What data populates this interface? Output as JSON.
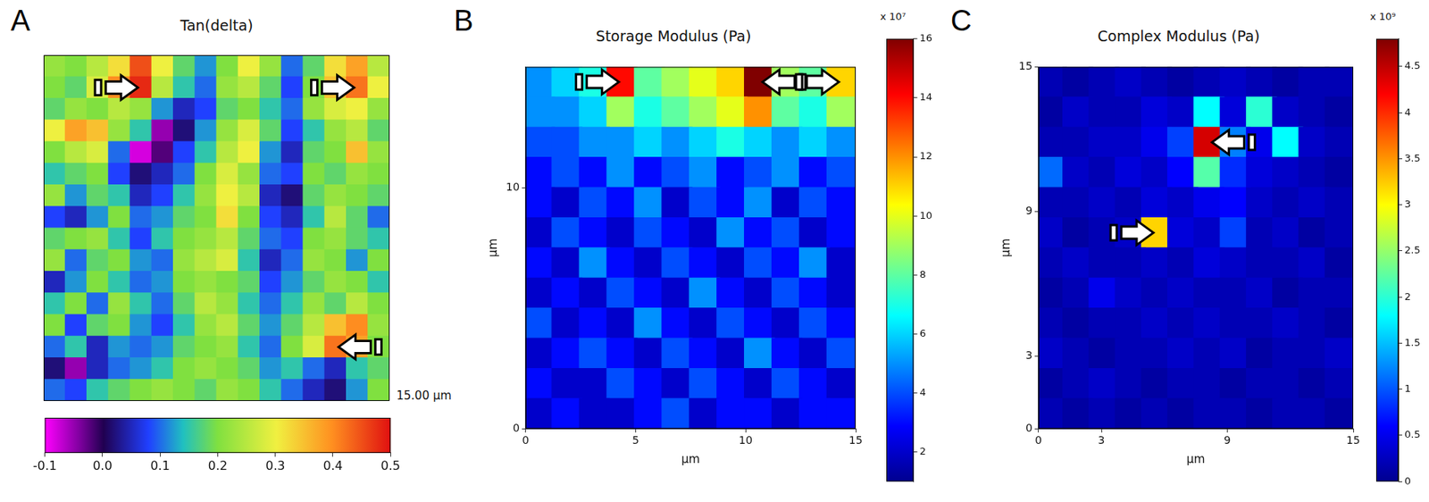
{
  "chart_data": [
    {
      "type": "heatmap",
      "panel_label": "A",
      "title": "Tan(delta)",
      "annotation": "15.00 µm",
      "xlim": [
        0,
        15
      ],
      "ylim": [
        0,
        15
      ],
      "tick_labels": false,
      "cells": [
        [
          0.22,
          0.2,
          0.25,
          0.32,
          0.45,
          0.3,
          0.18,
          0.12,
          0.2,
          0.3,
          0.22,
          0.1,
          0.18,
          0.32,
          0.38,
          0.25
        ],
        [
          0.2,
          0.18,
          0.28,
          0.4,
          0.48,
          0.25,
          0.15,
          0.1,
          0.22,
          0.25,
          0.18,
          0.08,
          0.2,
          0.35,
          0.42,
          0.3
        ],
        [
          0.18,
          0.22,
          0.2,
          0.25,
          0.22,
          0.12,
          0.05,
          0.08,
          0.18,
          0.2,
          0.15,
          0.1,
          0.22,
          0.28,
          0.3,
          0.22
        ],
        [
          0.3,
          0.38,
          0.35,
          0.22,
          0.15,
          -0.05,
          0.02,
          0.12,
          0.22,
          0.28,
          0.18,
          0.08,
          0.15,
          0.22,
          0.25,
          0.18
        ],
        [
          0.2,
          0.25,
          0.28,
          0.1,
          -0.08,
          -0.02,
          0.08,
          0.15,
          0.25,
          0.3,
          0.12,
          0.05,
          0.18,
          0.2,
          0.35,
          0.22
        ],
        [
          0.15,
          0.18,
          0.2,
          0.08,
          0.02,
          0.05,
          0.1,
          0.2,
          0.28,
          0.22,
          0.1,
          0.08,
          0.2,
          0.18,
          0.22,
          0.2
        ],
        [
          0.22,
          0.12,
          0.18,
          0.15,
          0.05,
          0.08,
          0.15,
          0.22,
          0.3,
          0.25,
          0.05,
          0.02,
          0.18,
          0.22,
          0.2,
          0.18
        ],
        [
          0.08,
          0.05,
          0.12,
          0.2,
          0.1,
          0.12,
          0.18,
          0.2,
          0.32,
          0.2,
          0.08,
          0.05,
          0.15,
          0.25,
          0.18,
          0.1
        ],
        [
          0.18,
          0.2,
          0.22,
          0.15,
          0.08,
          0.15,
          0.2,
          0.22,
          0.25,
          0.18,
          0.1,
          0.08,
          0.2,
          0.22,
          0.18,
          0.15
        ],
        [
          0.22,
          0.1,
          0.18,
          0.2,
          0.12,
          0.1,
          0.22,
          0.25,
          0.28,
          0.15,
          0.05,
          0.1,
          0.22,
          0.2,
          0.12,
          0.2
        ],
        [
          0.05,
          0.12,
          0.2,
          0.15,
          0.1,
          0.12,
          0.2,
          0.22,
          0.2,
          0.18,
          0.08,
          0.12,
          0.18,
          0.22,
          0.2,
          0.15
        ],
        [
          0.15,
          0.2,
          0.1,
          0.22,
          0.15,
          0.1,
          0.18,
          0.25,
          0.22,
          0.15,
          0.1,
          0.15,
          0.22,
          0.18,
          0.25,
          0.2
        ],
        [
          0.2,
          0.08,
          0.18,
          0.2,
          0.12,
          0.08,
          0.15,
          0.22,
          0.25,
          0.18,
          0.12,
          0.18,
          0.25,
          0.35,
          0.4,
          0.22
        ],
        [
          0.1,
          0.15,
          0.05,
          0.12,
          0.1,
          0.12,
          0.18,
          0.2,
          0.22,
          0.15,
          0.1,
          0.2,
          0.28,
          0.42,
          0.38,
          0.2
        ],
        [
          0.02,
          -0.05,
          0.05,
          0.1,
          0.12,
          0.15,
          0.2,
          0.22,
          0.2,
          0.18,
          0.12,
          0.15,
          0.1,
          0.05,
          0.15,
          0.18
        ],
        [
          0.1,
          0.08,
          0.15,
          0.18,
          0.2,
          0.22,
          0.2,
          0.18,
          0.22,
          0.2,
          0.15,
          0.1,
          0.05,
          0.02,
          0.12,
          0.2
        ]
      ],
      "colorbar": {
        "range": [
          -0.1,
          0.5
        ],
        "ticks": [
          -0.1,
          {
            "value": 0,
            "label": "0.0"
          },
          0.1,
          0.2,
          0.3,
          0.4,
          0.5
        ]
      }
    },
    {
      "type": "heatmap",
      "panel_label": "B",
      "title": "Storage Modulus (Pa)",
      "xlabel": "µm",
      "ylabel": "µm",
      "xlim": [
        0,
        15
      ],
      "xticks": [
        0,
        5,
        10,
        15
      ],
      "ylim": [
        0,
        15
      ],
      "yticks": [
        0,
        10
      ],
      "cells": [
        [
          5,
          6,
          7,
          14,
          8,
          9,
          10,
          11,
          16,
          9,
          8,
          11
        ],
        [
          5,
          5,
          6,
          9,
          7,
          8,
          9,
          10,
          12,
          8,
          7,
          9
        ],
        [
          4,
          4,
          5,
          5,
          6,
          5,
          6,
          7,
          6,
          5,
          6,
          5
        ],
        [
          3,
          4,
          3,
          5,
          3,
          4,
          5,
          3,
          4,
          5,
          3,
          4
        ],
        [
          3,
          2,
          4,
          3,
          5,
          2,
          4,
          3,
          5,
          2,
          4,
          3
        ],
        [
          2,
          4,
          3,
          2,
          4,
          3,
          2,
          5,
          3,
          4,
          2,
          3
        ],
        [
          3,
          2,
          5,
          3,
          2,
          4,
          3,
          2,
          4,
          3,
          5,
          2
        ],
        [
          2,
          3,
          2,
          4,
          3,
          2,
          5,
          3,
          2,
          4,
          3,
          2
        ],
        [
          4,
          2,
          3,
          2,
          5,
          3,
          2,
          4,
          3,
          2,
          4,
          3
        ],
        [
          2,
          3,
          4,
          3,
          2,
          4,
          3,
          2,
          5,
          3,
          2,
          4
        ],
        [
          3,
          2,
          2,
          4,
          3,
          2,
          4,
          3,
          2,
          4,
          3,
          2
        ],
        [
          2,
          3,
          2,
          2,
          3,
          4,
          2,
          3,
          3,
          2,
          3,
          3
        ]
      ],
      "colorbar": {
        "range": [
          1,
          16
        ],
        "ticks": [
          2,
          4,
          6,
          8,
          10,
          12,
          14,
          16
        ],
        "multiplier": "x 10⁷"
      }
    },
    {
      "type": "heatmap",
      "panel_label": "C",
      "title": "Complex Modulus (Pa)",
      "xlabel": "µm",
      "ylabel": "µm",
      "xlim": [
        0,
        15
      ],
      "xticks": [
        0,
        3,
        9,
        15
      ],
      "ylim": [
        0,
        15
      ],
      "yticks": [
        0,
        3,
        9,
        15
      ],
      "cells": [
        [
          0.2,
          0.1,
          0.2,
          0.3,
          0.2,
          0.1,
          0.2,
          0.3,
          0.2,
          0.1,
          0.2,
          0.2
        ],
        [
          0.1,
          0.3,
          0.2,
          0.2,
          0.4,
          0.3,
          1.8,
          0.4,
          2.0,
          0.3,
          0.2,
          0.1
        ],
        [
          0.2,
          0.2,
          0.3,
          0.3,
          0.5,
          0.9,
          4.4,
          1.2,
          0.5,
          1.8,
          0.3,
          0.2
        ],
        [
          1.1,
          0.3,
          0.2,
          0.4,
          0.3,
          0.6,
          2.2,
          0.8,
          0.4,
          0.3,
          0.2,
          0.1
        ],
        [
          0.2,
          0.2,
          0.3,
          0.2,
          0.4,
          0.3,
          0.5,
          0.6,
          0.3,
          0.2,
          0.3,
          0.2
        ],
        [
          0.3,
          0.1,
          0.2,
          0.3,
          3.2,
          0.4,
          0.3,
          0.9,
          0.2,
          0.3,
          0.1,
          0.2
        ],
        [
          0.2,
          0.3,
          0.2,
          0.2,
          0.3,
          0.2,
          0.4,
          0.3,
          0.2,
          0.2,
          0.3,
          0.1
        ],
        [
          0.1,
          0.2,
          0.5,
          0.3,
          0.2,
          0.3,
          0.2,
          0.2,
          0.3,
          0.1,
          0.2,
          0.2
        ],
        [
          0.2,
          0.1,
          0.2,
          0.2,
          0.3,
          0.2,
          0.3,
          0.2,
          0.2,
          0.3,
          0.2,
          0.1
        ],
        [
          0.3,
          0.2,
          0.1,
          0.2,
          0.2,
          0.3,
          0.2,
          0.3,
          0.1,
          0.2,
          0.2,
          0.3
        ],
        [
          0.1,
          0.2,
          0.3,
          0.2,
          0.1,
          0.2,
          0.2,
          0.1,
          0.2,
          0.2,
          0.1,
          0.2
        ],
        [
          0.2,
          0.1,
          0.2,
          0.1,
          0.2,
          0.1,
          0.2,
          0.2,
          0.1,
          0.2,
          0.2,
          0.1
        ]
      ],
      "colorbar": {
        "range": [
          0,
          4.8
        ],
        "ticks": [
          0,
          0.5,
          1,
          1.5,
          2,
          2.5,
          3,
          3.5,
          4,
          4.5
        ],
        "multiplier": "x 10⁹"
      }
    }
  ]
}
